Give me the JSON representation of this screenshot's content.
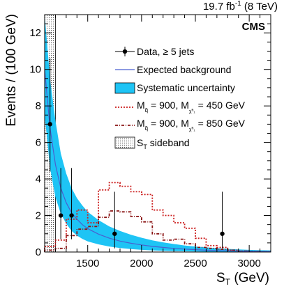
{
  "chart_data": {
    "type": "line",
    "header_right": "19.7 fb",
    "header_sup": "-1",
    "header_energy": " (8 TeV)",
    "experiment": "CMS",
    "xlabel_main": "S",
    "xlabel_sub": "T",
    "xlabel_unit": " (GeV)",
    "ylabel": "Events / (100 GeV)",
    "xlim": [
      1100,
      3200
    ],
    "ylim": [
      0,
      13
    ],
    "x_ticks": [
      1500,
      2000,
      2500,
      3000
    ],
    "y_ticks": [
      0,
      2,
      4,
      6,
      8,
      10,
      12
    ],
    "x_tick_labels": [
      "1500",
      "2000",
      "2500",
      "3000"
    ],
    "y_tick_labels": [
      "0",
      "2",
      "4",
      "6",
      "8",
      "10",
      "12"
    ],
    "sideband_range": [
      1100,
      1200
    ],
    "data_points": {
      "name": "Data, ≥ 5 jets",
      "x": [
        1150,
        1250,
        1350,
        1750,
        2750
      ],
      "y": [
        7,
        2,
        2,
        1,
        1
      ],
      "yerr_low": [
        2.6,
        1.3,
        1.3,
        0.8,
        0.8
      ],
      "yerr_high": [
        3.6,
        2.6,
        2.6,
        2.3,
        2.3
      ]
    },
    "background": {
      "name": "Expected background",
      "color": "#4a5fd0",
      "x": [
        1100,
        1150,
        1200,
        1250,
        1300,
        1350,
        1400,
        1450,
        1500,
        1600,
        1700,
        1800,
        1900,
        2000,
        2100,
        2200,
        2300,
        2400,
        2500,
        2600,
        2700,
        2800,
        2900,
        3000,
        3100,
        3200
      ],
      "y": [
        10.0,
        6.8,
        4.8,
        3.5,
        2.7,
        2.15,
        1.8,
        1.5,
        1.28,
        0.98,
        0.76,
        0.6,
        0.48,
        0.39,
        0.31,
        0.25,
        0.2,
        0.16,
        0.13,
        0.1,
        0.08,
        0.06,
        0.05,
        0.04,
        0.03,
        0.025
      ]
    },
    "uncertainty": {
      "name": "Systematic uncertainty",
      "color": "#1ec4f5",
      "low": [
        7.5,
        4.6,
        3.0,
        2.1,
        1.55,
        1.15,
        0.9,
        0.72,
        0.58,
        0.42,
        0.3,
        0.22,
        0.16,
        0.12,
        0.09,
        0.07,
        0.05,
        0.04,
        0.03,
        0.02,
        0.015,
        0.01,
        0.008,
        0.006,
        0.005,
        0.004
      ],
      "high": [
        13.0,
        9.5,
        7.2,
        5.4,
        4.3,
        3.5,
        2.95,
        2.55,
        2.2,
        1.75,
        1.4,
        1.15,
        0.95,
        0.78,
        0.64,
        0.53,
        0.44,
        0.36,
        0.3,
        0.25,
        0.21,
        0.17,
        0.14,
        0.12,
        0.1,
        0.09
      ]
    },
    "signal_450": {
      "name_prefix": "M",
      "name_sub": "q̃",
      "name_mid": " = 900, M",
      "name_sub2": "χ̃⁰₁",
      "name_suffix": " = 450 GeV",
      "color": "#cc1e1e",
      "bin_edges": [
        1100,
        1200,
        1300,
        1400,
        1500,
        1600,
        1700,
        1800,
        1900,
        2000,
        2100,
        2200,
        2300,
        2400,
        2500,
        2600,
        2700,
        2800,
        2900,
        3000,
        3100,
        3200
      ],
      "values": [
        0.3,
        0.65,
        1.8,
        2.3,
        1.6,
        3.4,
        3.8,
        3.6,
        3.3,
        3.15,
        2.3,
        2.0,
        1.6,
        1.3,
        0.75,
        0.35,
        0.25,
        0.1,
        0.05,
        0.03,
        0.02
      ]
    },
    "signal_850": {
      "name_prefix": "M",
      "name_sub": "q̃",
      "name_mid": " = 900, M",
      "name_sub2": "χ̃⁰₁",
      "name_suffix": " = 850 GeV",
      "color": "#8a1414",
      "bin_edges": [
        1100,
        1200,
        1300,
        1400,
        1500,
        1600,
        1700,
        1800,
        1900,
        2000,
        2100,
        2200,
        2300,
        2400,
        2500,
        2600,
        2700,
        2800,
        2900,
        3000,
        3100,
        3200
      ],
      "values": [
        0.1,
        0.2,
        0.9,
        1.25,
        1.4,
        1.9,
        2.25,
        2.2,
        1.95,
        1.65,
        1.0,
        0.65,
        0.7,
        0.45,
        0.25,
        0.2,
        0.15,
        0.1,
        0.05,
        0.03,
        0.02
      ]
    },
    "legend": {
      "placement": "top-right",
      "data_label": "Data, ≥ 5 jets",
      "bkg_label": "Expected background",
      "unc_label": "Systematic uncertainty",
      "sideband_main": "S",
      "sideband_sub": "T",
      "sideband_suffix": " sideband"
    }
  }
}
